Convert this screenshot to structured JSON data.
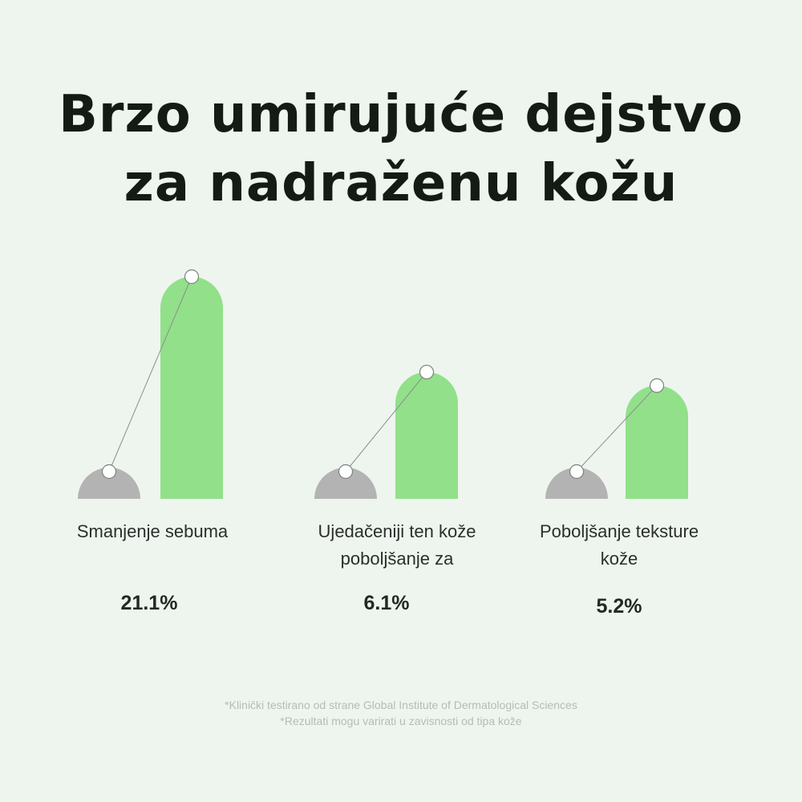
{
  "title_lines": [
    "Brzo umirujuće dejstvo",
    "za nadraženu kožu"
  ],
  "chart_data": {
    "type": "bar",
    "categories": [
      [
        "Smanjenje sebuma"
      ],
      [
        "Ujedačeniji ten kože",
        "poboljšanje za"
      ],
      [
        "Poboljšanje teksture",
        "kože"
      ]
    ],
    "series": [
      {
        "color": "#b3b3b3",
        "values": [
          1,
          1,
          1
        ]
      },
      {
        "color": "#92e08a",
        "values": [
          5.1,
          2.91,
          2.6
        ]
      }
    ],
    "value_labels": [
      "21.1%",
      "6.1%",
      "5.2%"
    ],
    "ylim": [
      0,
      5.1
    ]
  },
  "footnotes": [
    "*Klinički testirano od strane Global Institute of Dermatological Sciences",
    "*Rezultati mogu varirati u zavisnosti od tipa kože"
  ]
}
